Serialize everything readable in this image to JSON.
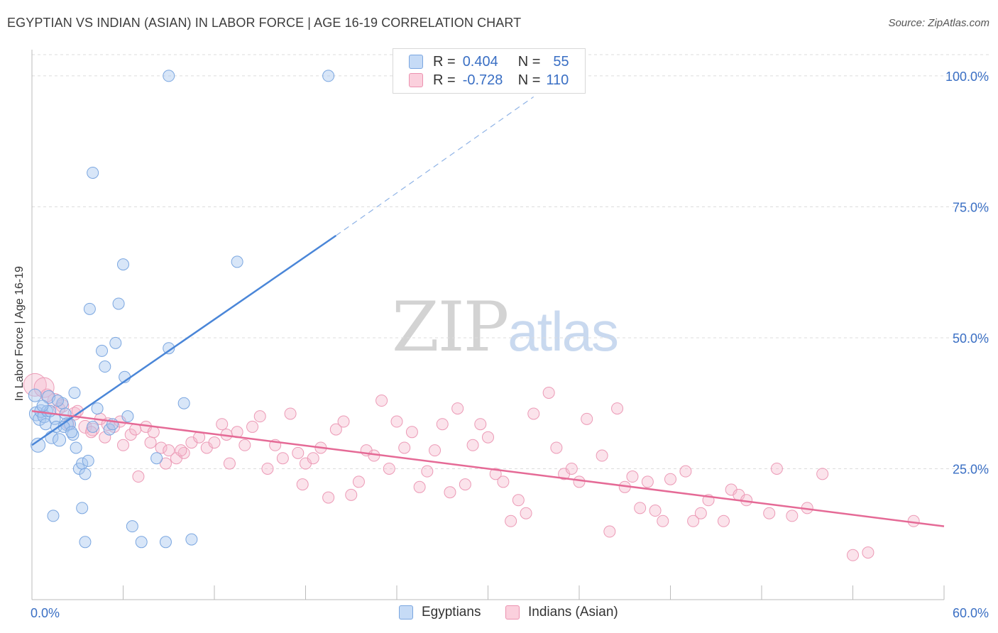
{
  "title": "EGYPTIAN VS INDIAN (ASIAN) IN LABOR FORCE | AGE 16-19 CORRELATION CHART",
  "source": "Source: ZipAtlas.com",
  "watermark": {
    "zip": "ZIP",
    "atlas": "atlas"
  },
  "legend": {
    "rows": [
      {
        "r_label": "R =",
        "r_value": "0.404",
        "n_label": "N =",
        "n_value": "55",
        "color": "#a9c8f0"
      },
      {
        "r_label": "R =",
        "r_value": "-0.728",
        "n_label": "N =",
        "n_value": "110",
        "color": "#f6b8cc"
      }
    ]
  },
  "bottom_legend": [
    {
      "label": "Egyptians",
      "color": "#a9c8f0"
    },
    {
      "label": "Indians (Asian)",
      "color": "#f6b8cc"
    }
  ],
  "chart_data": {
    "type": "scatter",
    "title": "EGYPTIAN VS INDIAN (ASIAN) IN LABOR FORCE | AGE 16-19 CORRELATION CHART",
    "ylabel": "In Labor Force | Age 16-19",
    "xlabel": "",
    "xlim": [
      0,
      60
    ],
    "ylim": [
      0,
      105
    ],
    "x_tick_labels": [
      "0.0%",
      "60.0%"
    ],
    "y_ticks": [
      25,
      50,
      75,
      100
    ],
    "y_tick_labels": [
      "25.0%",
      "50.0%",
      "75.0%",
      "100.0%"
    ],
    "grid": true,
    "legend_position": "top-center",
    "colors": {
      "egyptians": "#4a86d8",
      "egyptians_fill": "#a9c8f0",
      "indians": "#e56a96",
      "indians_fill": "#f6b8cc",
      "axis_label": "#3a6fc4"
    },
    "series": [
      {
        "name": "Egyptians",
        "trend": {
          "x0": 0,
          "y0": 29.5,
          "x1": 20,
          "y1": 69.5,
          "dashed_to_x": 33,
          "dashed_to_y": 96
        },
        "points": [
          [
            0.3,
            35.5,
            10
          ],
          [
            0.5,
            34.5,
            9
          ],
          [
            0.4,
            29.5,
            10
          ],
          [
            0.6,
            36.0,
            9
          ],
          [
            0.8,
            35.0,
            9
          ],
          [
            1.0,
            36.0,
            8
          ],
          [
            1.1,
            38.7,
            9
          ],
          [
            1.3,
            31.0,
            9
          ],
          [
            1.5,
            34.5,
            8
          ],
          [
            1.6,
            33.0,
            8
          ],
          [
            1.8,
            30.5,
            9
          ],
          [
            2.0,
            37.5,
            8
          ],
          [
            2.2,
            35.5,
            8
          ],
          [
            2.3,
            33.5,
            9
          ],
          [
            2.5,
            33.5,
            8
          ],
          [
            2.7,
            31.5,
            8
          ],
          [
            2.8,
            39.5,
            8
          ],
          [
            2.9,
            29.0,
            8
          ],
          [
            3.1,
            25.0,
            8
          ],
          [
            3.3,
            26.0,
            8
          ],
          [
            3.5,
            24.0,
            8
          ],
          [
            3.7,
            26.5,
            8
          ],
          [
            4.0,
            33.0,
            8
          ],
          [
            4.3,
            36.5,
            8
          ],
          [
            4.6,
            47.5,
            8
          ],
          [
            4.8,
            44.5,
            8
          ],
          [
            5.1,
            32.5,
            8
          ],
          [
            5.3,
            33.5,
            8
          ],
          [
            5.5,
            49.0,
            8
          ],
          [
            5.7,
            56.5,
            8
          ],
          [
            6.1,
            42.5,
            8
          ],
          [
            6.3,
            35.0,
            8
          ],
          [
            6.0,
            64.0,
            8
          ],
          [
            3.8,
            55.5,
            8
          ],
          [
            4.0,
            81.5,
            8
          ],
          [
            9.0,
            100.0,
            8
          ],
          [
            19.5,
            100.0,
            8
          ],
          [
            13.5,
            64.5,
            8
          ],
          [
            9.0,
            48.0,
            8
          ],
          [
            10.0,
            37.5,
            8
          ],
          [
            8.2,
            27.0,
            8
          ],
          [
            1.4,
            16.0,
            8
          ],
          [
            3.3,
            17.5,
            8
          ],
          [
            3.5,
            11.0,
            8
          ],
          [
            6.6,
            14.0,
            8
          ],
          [
            7.2,
            11.0,
            8
          ],
          [
            8.8,
            11.0,
            8
          ],
          [
            10.5,
            11.5,
            8
          ],
          [
            0.2,
            39.0,
            9
          ],
          [
            1.2,
            36.0,
            8
          ],
          [
            2.1,
            33.0,
            8
          ],
          [
            0.9,
            33.5,
            8
          ],
          [
            1.7,
            38.0,
            8
          ],
          [
            2.6,
            32.0,
            8
          ],
          [
            0.7,
            37.0,
            8
          ]
        ]
      },
      {
        "name": "Indians (Asian)",
        "trend": {
          "x0": 0,
          "y0": 36.0,
          "x1": 60,
          "y1": 14.0
        },
        "points": [
          [
            0.2,
            41.0,
            16
          ],
          [
            0.8,
            40.5,
            14
          ],
          [
            1.5,
            38.0,
            10
          ],
          [
            2.0,
            37.0,
            9
          ],
          [
            2.8,
            35.5,
            9
          ],
          [
            3.5,
            33.0,
            9
          ],
          [
            4.0,
            32.5,
            9
          ],
          [
            4.5,
            34.5,
            8
          ],
          [
            5.0,
            33.5,
            9
          ],
          [
            5.4,
            33.0,
            8
          ],
          [
            6.0,
            29.5,
            8
          ],
          [
            6.5,
            31.5,
            8
          ],
          [
            7.0,
            23.5,
            8
          ],
          [
            7.5,
            33.0,
            8
          ],
          [
            8.0,
            32.0,
            8
          ],
          [
            8.5,
            29.0,
            8
          ],
          [
            9.0,
            28.5,
            8
          ],
          [
            9.5,
            27.0,
            8
          ],
          [
            10.0,
            28.0,
            8
          ],
          [
            10.5,
            30.0,
            8
          ],
          [
            11.0,
            31.0,
            8
          ],
          [
            11.5,
            29.0,
            8
          ],
          [
            12.0,
            30.0,
            8
          ],
          [
            12.5,
            33.5,
            8
          ],
          [
            13.0,
            26.0,
            8
          ],
          [
            13.5,
            32.0,
            8
          ],
          [
            14.0,
            29.5,
            8
          ],
          [
            14.5,
            33.0,
            8
          ],
          [
            15.0,
            35.0,
            8
          ],
          [
            15.5,
            25.0,
            8
          ],
          [
            16.0,
            29.5,
            8
          ],
          [
            16.5,
            27.0,
            8
          ],
          [
            17.0,
            35.5,
            8
          ],
          [
            17.5,
            28.0,
            8
          ],
          [
            18.0,
            26.0,
            8
          ],
          [
            18.5,
            27.0,
            8
          ],
          [
            19.0,
            29.0,
            8
          ],
          [
            19.5,
            19.5,
            8
          ],
          [
            20.0,
            32.5,
            8
          ],
          [
            20.5,
            34.0,
            8
          ],
          [
            21.0,
            20.0,
            8
          ],
          [
            21.5,
            22.5,
            8
          ],
          [
            22.0,
            28.5,
            8
          ],
          [
            22.5,
            27.5,
            8
          ],
          [
            23.0,
            38.0,
            8
          ],
          [
            23.5,
            25.0,
            8
          ],
          [
            24.0,
            34.0,
            8
          ],
          [
            24.5,
            29.0,
            8
          ],
          [
            25.0,
            32.0,
            8
          ],
          [
            25.5,
            21.5,
            8
          ],
          [
            26.0,
            24.5,
            8
          ],
          [
            26.5,
            28.5,
            8
          ],
          [
            27.0,
            33.5,
            8
          ],
          [
            27.5,
            20.5,
            8
          ],
          [
            28.0,
            36.5,
            8
          ],
          [
            28.5,
            22.0,
            8
          ],
          [
            29.0,
            29.5,
            8
          ],
          [
            29.5,
            33.5,
            8
          ],
          [
            30.0,
            31.0,
            8
          ],
          [
            30.5,
            24.0,
            8
          ],
          [
            31.0,
            22.5,
            8
          ],
          [
            31.5,
            15.0,
            8
          ],
          [
            32.0,
            19.0,
            8
          ],
          [
            32.5,
            16.5,
            8
          ],
          [
            33.0,
            35.5,
            8
          ],
          [
            34.0,
            39.5,
            8
          ],
          [
            34.5,
            29.0,
            8
          ],
          [
            35.0,
            24.0,
            8
          ],
          [
            35.5,
            25.0,
            8
          ],
          [
            36.0,
            22.5,
            8
          ],
          [
            36.5,
            34.5,
            8
          ],
          [
            37.5,
            27.5,
            8
          ],
          [
            38.0,
            13.0,
            8
          ],
          [
            38.5,
            36.5,
            8
          ],
          [
            39.0,
            21.5,
            8
          ],
          [
            39.5,
            23.5,
            8
          ],
          [
            40.0,
            17.5,
            8
          ],
          [
            40.5,
            22.5,
            8
          ],
          [
            41.0,
            17.0,
            8
          ],
          [
            41.5,
            15.0,
            8
          ],
          [
            42.0,
            23.0,
            8
          ],
          [
            43.0,
            24.5,
            8
          ],
          [
            43.5,
            15.0,
            8
          ],
          [
            44.0,
            16.5,
            8
          ],
          [
            44.5,
            19.0,
            8
          ],
          [
            45.5,
            15.0,
            8
          ],
          [
            46.0,
            21.0,
            8
          ],
          [
            46.5,
            20.0,
            8
          ],
          [
            47.0,
            19.0,
            8
          ],
          [
            48.5,
            16.5,
            8
          ],
          [
            49.0,
            25.0,
            8
          ],
          [
            50.0,
            16.0,
            8
          ],
          [
            51.0,
            17.5,
            8
          ],
          [
            52.0,
            24.0,
            8
          ],
          [
            54.0,
            8.5,
            8
          ],
          [
            55.0,
            9.0,
            8
          ],
          [
            58.0,
            15.0,
            8
          ],
          [
            1.0,
            39.0,
            9
          ],
          [
            1.8,
            36.5,
            8
          ],
          [
            2.4,
            33.5,
            8
          ],
          [
            3.0,
            36.0,
            8
          ],
          [
            3.9,
            32.0,
            8
          ],
          [
            4.8,
            31.0,
            8
          ],
          [
            5.8,
            34.0,
            8
          ],
          [
            6.8,
            32.5,
            8
          ],
          [
            7.8,
            30.0,
            8
          ],
          [
            8.8,
            26.0,
            8
          ],
          [
            9.8,
            28.5,
            8
          ],
          [
            12.8,
            31.5,
            8
          ],
          [
            17.8,
            22.0,
            8
          ]
        ]
      }
    ]
  }
}
